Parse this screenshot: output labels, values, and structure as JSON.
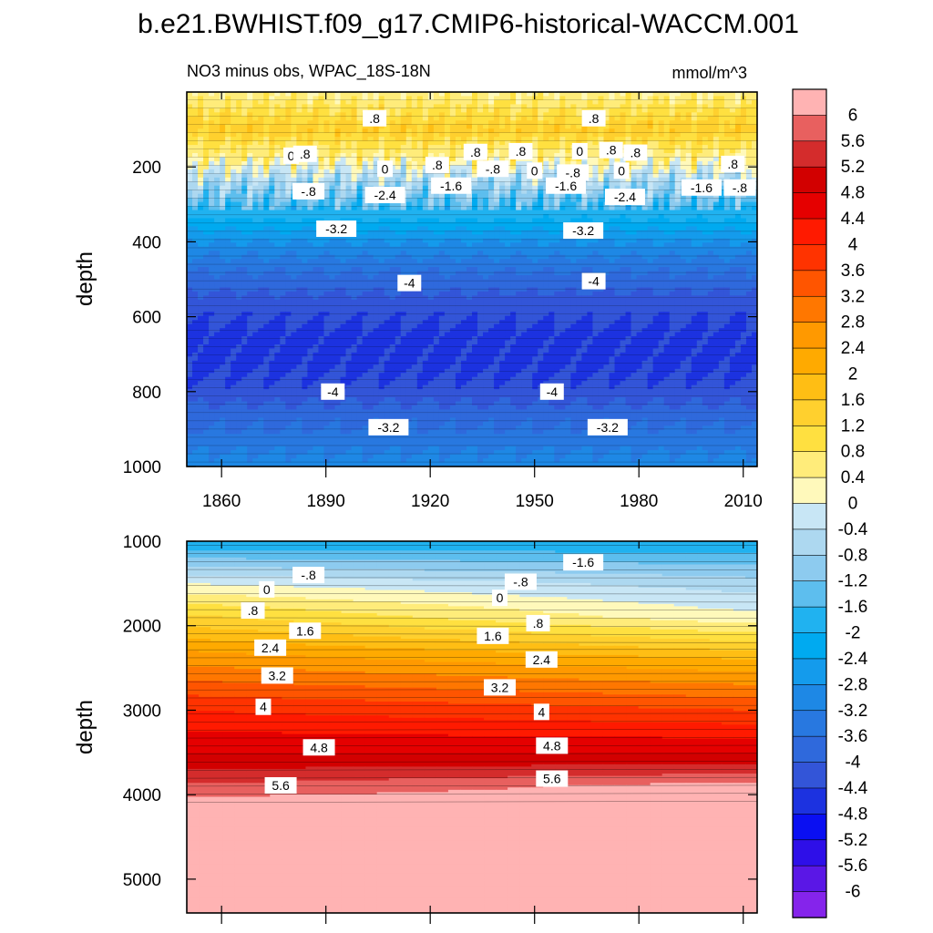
{
  "figure": {
    "title": "b.e21.BWHIST.f09_g17.CMIP6-historical-WACCM.001",
    "subtitle_left": "NO3 minus obs, WPAC_18S-18N",
    "subtitle_right": "mmol/m^3"
  },
  "chart_data": [
    {
      "type": "heatmap",
      "panel": "upper",
      "title": "NO3 minus obs, WPAC_18S-18N",
      "units": "mmol/m^3",
      "xlabel": "",
      "ylabel": "depth",
      "xlim": [
        1850,
        2014
      ],
      "ylim": [
        1000,
        0
      ],
      "x_ticks": [
        1860,
        1890,
        1920,
        1950,
        1980,
        2010
      ],
      "x_tick_labels": [
        "1860",
        "1890",
        "1920",
        "1950",
        "1980",
        "2010"
      ],
      "y_ticks": [
        200,
        400,
        600,
        800,
        1000
      ],
      "y_tick_labels": [
        "200",
        "400",
        "600",
        "800",
        "1000"
      ],
      "profile": [
        {
          "depth": 5,
          "value": 0.5
        },
        {
          "depth": 100,
          "value": 1.4
        },
        {
          "depth": 180,
          "value": 0.4
        },
        {
          "depth": 230,
          "value": -0.5
        },
        {
          "depth": 280,
          "value": -1.2
        },
        {
          "depth": 340,
          "value": -2.0
        },
        {
          "depth": 400,
          "value": -2.8
        },
        {
          "depth": 480,
          "value": -3.6
        },
        {
          "depth": 560,
          "value": -4.2
        },
        {
          "depth": 640,
          "value": -4.5
        },
        {
          "depth": 720,
          "value": -4.5
        },
        {
          "depth": 790,
          "value": -4.3
        },
        {
          "depth": 860,
          "value": -3.8
        },
        {
          "depth": 1000,
          "value": -3.0
        }
      ],
      "contour_labels": [
        {
          "text": ".8",
          "year": 1904,
          "depth": 70
        },
        {
          "text": ".8",
          "year": 1967,
          "depth": 70
        },
        {
          "text": "0",
          "year": 1880,
          "depth": 170
        },
        {
          "text": ".8",
          "year": 1884,
          "depth": 165
        },
        {
          "text": ".8",
          "year": 1933,
          "depth": 160
        },
        {
          "text": ".8",
          "year": 1946,
          "depth": 158
        },
        {
          "text": "0",
          "year": 1963,
          "depth": 158
        },
        {
          "text": ".8",
          "year": 1972,
          "depth": 155
        },
        {
          "text": ".8",
          "year": 1979,
          "depth": 162
        },
        {
          "text": "0",
          "year": 1907,
          "depth": 205
        },
        {
          "text": ".8",
          "year": 1922,
          "depth": 195
        },
        {
          "text": "-.8",
          "year": 1938,
          "depth": 205
        },
        {
          "text": "0",
          "year": 1950,
          "depth": 210
        },
        {
          "text": "-.8",
          "year": 1961,
          "depth": 215
        },
        {
          "text": "0",
          "year": 1975,
          "depth": 210
        },
        {
          "text": ".8",
          "year": 2007,
          "depth": 192
        },
        {
          "text": "-.8",
          "year": 1885,
          "depth": 265
        },
        {
          "text": "-1.6",
          "year": 1926,
          "depth": 250
        },
        {
          "text": "-2.4",
          "year": 1907,
          "depth": 275
        },
        {
          "text": "-1.6",
          "year": 1959,
          "depth": 250
        },
        {
          "text": "-2.4",
          "year": 1976,
          "depth": 280
        },
        {
          "text": "-1.6",
          "year": 1998,
          "depth": 255
        },
        {
          "text": "-.8",
          "year": 2009,
          "depth": 255
        },
        {
          "text": "-3.2",
          "year": 1893,
          "depth": 365
        },
        {
          "text": "-3.2",
          "year": 1964,
          "depth": 370
        },
        {
          "text": "-4",
          "year": 1914,
          "depth": 510
        },
        {
          "text": "-4",
          "year": 1967,
          "depth": 505
        },
        {
          "text": "-4",
          "year": 1892,
          "depth": 800
        },
        {
          "text": "-4",
          "year": 1955,
          "depth": 800
        },
        {
          "text": "-3.2",
          "year": 1908,
          "depth": 895
        },
        {
          "text": "-3.2",
          "year": 1971,
          "depth": 895
        }
      ]
    },
    {
      "type": "heatmap",
      "panel": "lower",
      "xlabel": "",
      "ylabel": "depth",
      "xlim": [
        1850,
        2014
      ],
      "ylim": [
        5400,
        1000
      ],
      "y_ticks": [
        1000,
        2000,
        3000,
        4000,
        5000
      ],
      "y_tick_labels": [
        "1000",
        "2000",
        "3000",
        "4000",
        "5000"
      ],
      "profile_left": [
        {
          "depth": 1000,
          "value": -2.0
        },
        {
          "depth": 1500,
          "value": 0.0
        },
        {
          "depth": 1800,
          "value": 1.0
        },
        {
          "depth": 2300,
          "value": 2.4
        },
        {
          "depth": 3000,
          "value": 4.0
        },
        {
          "depth": 3500,
          "value": 4.8
        },
        {
          "depth": 3800,
          "value": 5.4
        },
        {
          "depth": 4100,
          "value": 6.2
        },
        {
          "depth": 5400,
          "value": 6.6
        }
      ],
      "profile_right": [
        {
          "depth": 1000,
          "value": -2.0
        },
        {
          "depth": 1500,
          "value": -0.6
        },
        {
          "depth": 1900,
          "value": 0.1
        },
        {
          "depth": 2400,
          "value": 2.0
        },
        {
          "depth": 3000,
          "value": 3.6
        },
        {
          "depth": 3500,
          "value": 4.8
        },
        {
          "depth": 3700,
          "value": 5.4
        },
        {
          "depth": 3900,
          "value": 6.2
        },
        {
          "depth": 5400,
          "value": 6.6
        }
      ],
      "contour_labels": [
        {
          "text": "-1.6",
          "year": 1964,
          "depth": 1250
        },
        {
          "text": "-.8",
          "year": 1885,
          "depth": 1400
        },
        {
          "text": "-.8",
          "year": 1946,
          "depth": 1480
        },
        {
          "text": "0",
          "year": 1873,
          "depth": 1570
        },
        {
          "text": "0",
          "year": 1940,
          "depth": 1670
        },
        {
          "text": ".8",
          "year": 1869,
          "depth": 1820
        },
        {
          "text": ".8",
          "year": 1951,
          "depth": 1970
        },
        {
          "text": "1.6",
          "year": 1884,
          "depth": 2060
        },
        {
          "text": "1.6",
          "year": 1938,
          "depth": 2120
        },
        {
          "text": "2.4",
          "year": 1874,
          "depth": 2260
        },
        {
          "text": "2.4",
          "year": 1952,
          "depth": 2400
        },
        {
          "text": "3.2",
          "year": 1876,
          "depth": 2590
        },
        {
          "text": "3.2",
          "year": 1940,
          "depth": 2730
        },
        {
          "text": "4",
          "year": 1872,
          "depth": 2960
        },
        {
          "text": "4",
          "year": 1952,
          "depth": 3020
        },
        {
          "text": "4.8",
          "year": 1888,
          "depth": 3440
        },
        {
          "text": "4.8",
          "year": 1955,
          "depth": 3420
        },
        {
          "text": "5.6",
          "year": 1877,
          "depth": 3890
        },
        {
          "text": "5.6",
          "year": 1955,
          "depth": 3810
        }
      ]
    }
  ],
  "colorbar": {
    "levels": [
      "6",
      "5.6",
      "5.2",
      "4.8",
      "4.4",
      "4",
      "3.6",
      "3.2",
      "2.8",
      "2.4",
      "2",
      "1.6",
      "1.2",
      "0.8",
      "0.4",
      "0",
      "-0.4",
      "-0.8",
      "-1.2",
      "-1.6",
      "-2",
      "-2.4",
      "-2.8",
      "-3.2",
      "-3.6",
      "-4",
      "-4.4",
      "-4.8",
      "-5.2",
      "-5.6",
      "-6"
    ],
    "colors": [
      "#FFB3B3",
      "#E8605F",
      "#D42C2C",
      "#D20000",
      "#E50000",
      "#FF1A00",
      "#FF3300",
      "#FF5500",
      "#FF7700",
      "#FF9900",
      "#FFAA00",
      "#FFBE14",
      "#FFD02E",
      "#FFE040",
      "#FFEC7A",
      "#FFF9BB",
      "#C8E6F5",
      "#ADD8F0",
      "#8DCBEF",
      "#5DBEEE",
      "#20B2F0",
      "#00AAF0",
      "#149BEC",
      "#1E88E5",
      "#2878E0",
      "#2F69DC",
      "#3355D8",
      "#1C32E0",
      "#0A0FF2",
      "#2E0FE8",
      "#5A17E6",
      "#8524EB"
    ]
  }
}
